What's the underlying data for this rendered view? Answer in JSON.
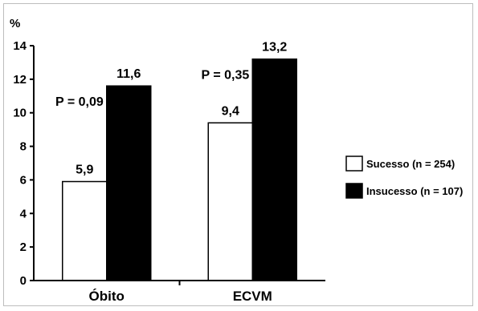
{
  "chart_data": {
    "type": "bar",
    "title": "",
    "ylabel": "%",
    "xlabel": "",
    "ylim": [
      0,
      14
    ],
    "yticks": [
      0,
      2,
      4,
      6,
      8,
      10,
      12,
      14
    ],
    "grid": false,
    "legend_position": "right",
    "categories": [
      "Óbito",
      "ECVM"
    ],
    "series": [
      {
        "name": "Sucesso (n = 254)",
        "color": "#ffffff",
        "values": [
          5.9,
          9.4
        ],
        "labels": [
          "5,9",
          "9,4"
        ]
      },
      {
        "name": "Insucesso (n = 107)",
        "color": "#000000",
        "values": [
          11.6,
          13.2
        ],
        "labels": [
          "11,6",
          "13,2"
        ]
      }
    ],
    "annotations": [
      "P = 0,09",
      "P = 0,35"
    ]
  }
}
